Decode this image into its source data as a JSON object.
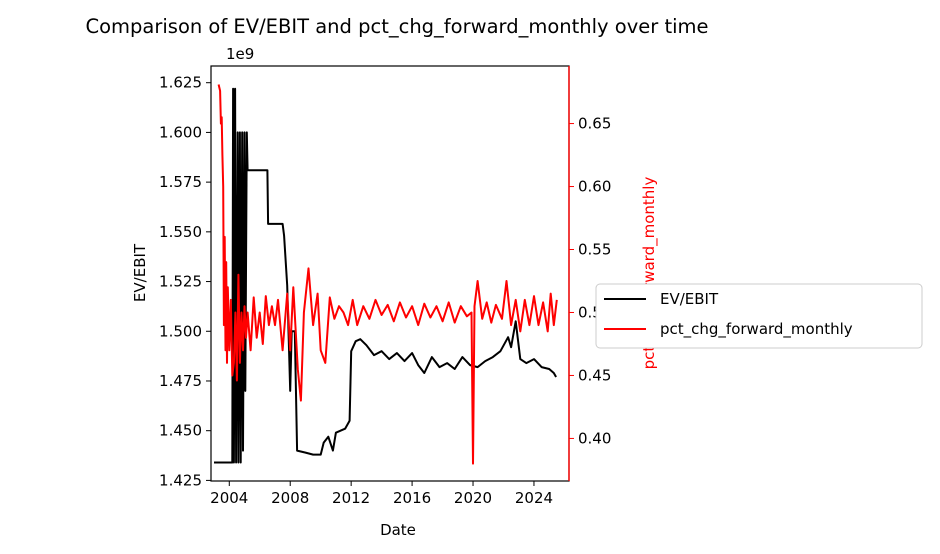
{
  "chart_data": {
    "type": "line",
    "title": "Comparison of EV/EBIT and pct_chg_forward_monthly over time",
    "xlabel": "Date",
    "x_ticks": [
      "2004",
      "2008",
      "2012",
      "2016",
      "2020",
      "2024"
    ],
    "xlim": [
      2002.8,
      2026.3
    ],
    "left_axis": {
      "label": "EV/EBIT",
      "offset_text": "1e9",
      "ticks": [
        "1.425",
        "1.450",
        "1.475",
        "1.500",
        "1.525",
        "1.550",
        "1.575",
        "1.600",
        "1.625"
      ],
      "ylim": [
        1.4247,
        1.6334
      ],
      "color": "#000000"
    },
    "right_axis": {
      "label": "pct_chg_forward_monthly",
      "ticks": [
        "0.40",
        "0.45",
        "0.50",
        "0.55",
        "0.60",
        "0.65"
      ],
      "ylim": [
        0.3662,
        0.6957
      ],
      "color": "#ff0000"
    },
    "legend": {
      "placement": "right, outside plot"
    },
    "grid": false,
    "series": [
      {
        "name": "EV/EBIT",
        "axis": "left",
        "color": "#000000",
        "points": [
          [
            2003.0,
            1.434
          ],
          [
            2004.0,
            1.434
          ],
          [
            2004.2,
            1.434
          ],
          [
            2004.25,
            1.622
          ],
          [
            2004.3,
            1.434
          ],
          [
            2004.38,
            1.622
          ],
          [
            2004.45,
            1.434
          ],
          [
            2004.55,
            1.6
          ],
          [
            2004.6,
            1.434
          ],
          [
            2004.7,
            1.6
          ],
          [
            2004.75,
            1.434
          ],
          [
            2004.85,
            1.6
          ],
          [
            2004.9,
            1.44
          ],
          [
            2005.0,
            1.6
          ],
          [
            2005.05,
            1.47
          ],
          [
            2005.15,
            1.6
          ],
          [
            2005.2,
            1.581
          ],
          [
            2006.5,
            1.581
          ],
          [
            2006.55,
            1.554
          ],
          [
            2007.5,
            1.554
          ],
          [
            2007.6,
            1.548
          ],
          [
            2007.8,
            1.523
          ],
          [
            2008.0,
            1.47
          ],
          [
            2008.1,
            1.5
          ],
          [
            2008.3,
            1.5
          ],
          [
            2008.45,
            1.44
          ],
          [
            2009.0,
            1.439
          ],
          [
            2009.5,
            1.438
          ],
          [
            2010.0,
            1.438
          ],
          [
            2010.2,
            1.444
          ],
          [
            2010.5,
            1.447
          ],
          [
            2010.8,
            1.44
          ],
          [
            2011.0,
            1.449
          ],
          [
            2011.6,
            1.451
          ],
          [
            2011.9,
            1.455
          ],
          [
            2012.0,
            1.49
          ],
          [
            2012.3,
            1.495
          ],
          [
            2012.6,
            1.496
          ],
          [
            2013.0,
            1.493
          ],
          [
            2013.5,
            1.488
          ],
          [
            2014.0,
            1.49
          ],
          [
            2014.5,
            1.486
          ],
          [
            2015.0,
            1.489
          ],
          [
            2015.5,
            1.485
          ],
          [
            2016.0,
            1.489
          ],
          [
            2016.4,
            1.483
          ],
          [
            2016.8,
            1.479
          ],
          [
            2017.3,
            1.487
          ],
          [
            2017.8,
            1.482
          ],
          [
            2018.3,
            1.484
          ],
          [
            2018.8,
            1.481
          ],
          [
            2019.3,
            1.487
          ],
          [
            2019.8,
            1.483
          ],
          [
            2020.3,
            1.482
          ],
          [
            2020.8,
            1.485
          ],
          [
            2021.3,
            1.487
          ],
          [
            2021.8,
            1.49
          ],
          [
            2022.3,
            1.497
          ],
          [
            2022.5,
            1.492
          ],
          [
            2022.8,
            1.505
          ],
          [
            2023.1,
            1.486
          ],
          [
            2023.5,
            1.484
          ],
          [
            2024.0,
            1.486
          ],
          [
            2024.5,
            1.482
          ],
          [
            2025.0,
            1.481
          ],
          [
            2025.3,
            1.479
          ],
          [
            2025.45,
            1.477
          ]
        ]
      },
      {
        "name": "pct_chg_forward_monthly",
        "axis": "right",
        "color": "#ff0000",
        "points": [
          [
            2003.3,
            0.681
          ],
          [
            2003.4,
            0.676
          ],
          [
            2003.45,
            0.65
          ],
          [
            2003.5,
            0.655
          ],
          [
            2003.55,
            0.625
          ],
          [
            2003.6,
            0.6
          ],
          [
            2003.65,
            0.49
          ],
          [
            2003.7,
            0.56
          ],
          [
            2003.75,
            0.47
          ],
          [
            2003.8,
            0.54
          ],
          [
            2003.85,
            0.46
          ],
          [
            2003.9,
            0.52
          ],
          [
            2004.0,
            0.47
          ],
          [
            2004.1,
            0.51
          ],
          [
            2004.2,
            0.45
          ],
          [
            2004.3,
            0.46
          ],
          [
            2004.4,
            0.5
          ],
          [
            2004.5,
            0.446
          ],
          [
            2004.6,
            0.53
          ],
          [
            2004.7,
            0.46
          ],
          [
            2004.8,
            0.5
          ],
          [
            2004.9,
            0.47
          ],
          [
            2005.0,
            0.505
          ],
          [
            2005.1,
            0.48
          ],
          [
            2005.2,
            0.5
          ],
          [
            2005.4,
            0.47
          ],
          [
            2005.6,
            0.512
          ],
          [
            2005.8,
            0.48
          ],
          [
            2006.0,
            0.5
          ],
          [
            2006.2,
            0.475
          ],
          [
            2006.4,
            0.513
          ],
          [
            2006.6,
            0.49
          ],
          [
            2006.8,
            0.505
          ],
          [
            2007.0,
            0.49
          ],
          [
            2007.2,
            0.51
          ],
          [
            2007.5,
            0.47
          ],
          [
            2007.8,
            0.515
          ],
          [
            2008.0,
            0.47
          ],
          [
            2008.2,
            0.52
          ],
          [
            2008.5,
            0.455
          ],
          [
            2008.7,
            0.43
          ],
          [
            2008.9,
            0.5
          ],
          [
            2009.2,
            0.535
          ],
          [
            2009.5,
            0.49
          ],
          [
            2009.8,
            0.515
          ],
          [
            2010.0,
            0.47
          ],
          [
            2010.3,
            0.46
          ],
          [
            2010.6,
            0.512
          ],
          [
            2010.9,
            0.495
          ],
          [
            2011.2,
            0.505
          ],
          [
            2011.5,
            0.5
          ],
          [
            2011.8,
            0.49
          ],
          [
            2012.1,
            0.51
          ],
          [
            2012.4,
            0.49
          ],
          [
            2012.8,
            0.505
          ],
          [
            2013.2,
            0.495
          ],
          [
            2013.6,
            0.51
          ],
          [
            2014.0,
            0.498
          ],
          [
            2014.4,
            0.506
          ],
          [
            2014.8,
            0.493
          ],
          [
            2015.2,
            0.508
          ],
          [
            2015.6,
            0.496
          ],
          [
            2016.0,
            0.505
          ],
          [
            2016.4,
            0.49
          ],
          [
            2016.8,
            0.507
          ],
          [
            2017.2,
            0.496
          ],
          [
            2017.6,
            0.505
          ],
          [
            2018.0,
            0.493
          ],
          [
            2018.4,
            0.508
          ],
          [
            2018.8,
            0.492
          ],
          [
            2019.2,
            0.505
          ],
          [
            2019.6,
            0.497
          ],
          [
            2019.9,
            0.5
          ],
          [
            2020.0,
            0.38
          ],
          [
            2020.1,
            0.505
          ],
          [
            2020.3,
            0.525
          ],
          [
            2020.6,
            0.495
          ],
          [
            2020.9,
            0.508
          ],
          [
            2021.2,
            0.492
          ],
          [
            2021.5,
            0.506
          ],
          [
            2021.9,
            0.495
          ],
          [
            2022.2,
            0.525
          ],
          [
            2022.5,
            0.49
          ],
          [
            2022.8,
            0.51
          ],
          [
            2023.1,
            0.485
          ],
          [
            2023.4,
            0.51
          ],
          [
            2023.7,
            0.49
          ],
          [
            2024.0,
            0.513
          ],
          [
            2024.3,
            0.49
          ],
          [
            2024.6,
            0.508
          ],
          [
            2024.9,
            0.485
          ],
          [
            2025.1,
            0.515
          ],
          [
            2025.3,
            0.49
          ],
          [
            2025.5,
            0.51
          ]
        ]
      }
    ]
  }
}
